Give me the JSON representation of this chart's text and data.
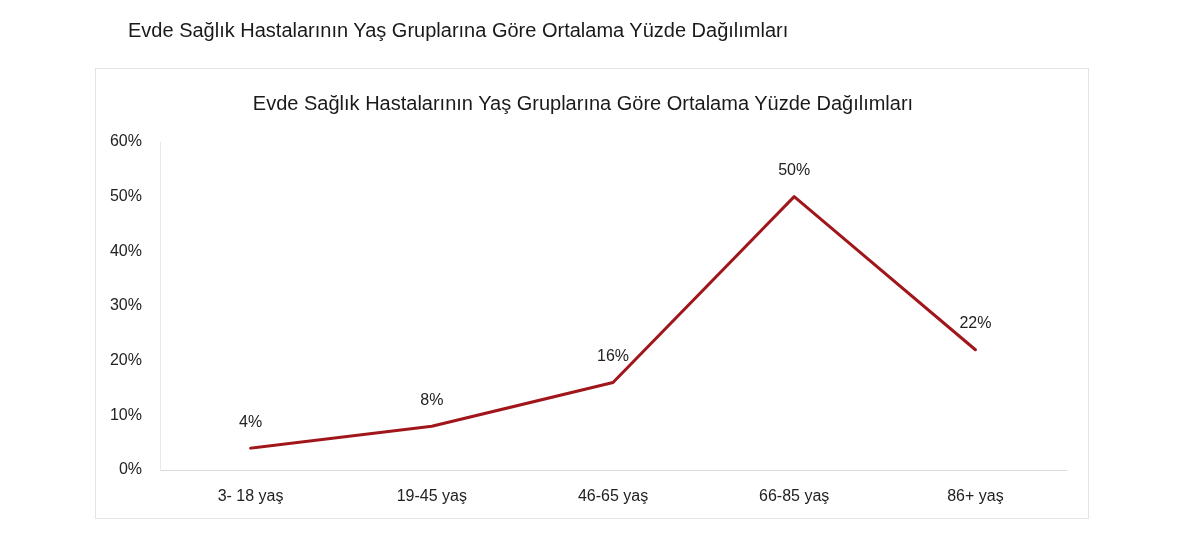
{
  "chart_data": {
    "type": "line",
    "title": "Evde Sağlık Hastalarının Yaş Gruplarına Göre Ortalama Yüzde Dağılımları",
    "subtitle": "Evde Sağlık Hastalarının Yaş Gruplarına Göre Ortalama Yüzde Dağılımları",
    "categories": [
      "3- 18 yaş",
      "19-45 yaş",
      "46-65 yaş",
      "66-85 yaş",
      "86+ yaş"
    ],
    "series": [
      {
        "color": "#a0161b",
        "values": [
          4,
          8,
          16,
          50,
          22
        ],
        "value_labels": [
          "4%",
          "8%",
          "16%",
          "50%",
          "22%"
        ]
      }
    ],
    "ylim": [
      0,
      60
    ],
    "yticks": [
      {
        "value": 0,
        "label": "0%"
      },
      {
        "value": 10,
        "label": "10%"
      },
      {
        "value": 20,
        "label": "20%"
      },
      {
        "value": 30,
        "label": "30%"
      },
      {
        "value": 40,
        "label": "40%"
      },
      {
        "value": 50,
        "label": "50%"
      },
      {
        "value": 60,
        "label": "60%"
      }
    ],
    "grid": false,
    "legend": false,
    "marker": "none",
    "line_style": "solid"
  }
}
